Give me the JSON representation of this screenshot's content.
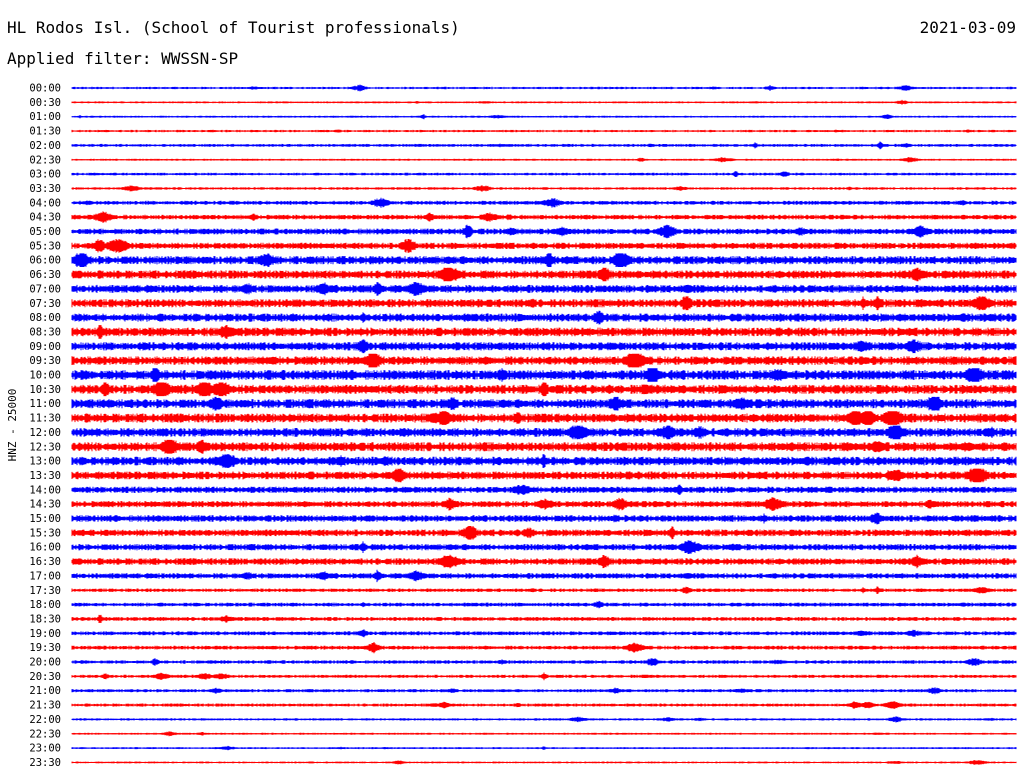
{
  "header": {
    "station": "HL Rodos Isl. (School of Tourist professionals)",
    "date": "2021-03-09",
    "filter": "Applied filter: WWSSN-SP"
  },
  "chart_data": {
    "type": "line",
    "title": "HL Rodos Isl. (School of Tourist professionals)",
    "ylabel": "HNZ - 25000",
    "xlabel": "",
    "colors": [
      "#0000ff",
      "#ff0000"
    ],
    "rows": [
      {
        "label": "00:00",
        "amp": 1.2
      },
      {
        "label": "00:30",
        "amp": 1.0
      },
      {
        "label": "01:00",
        "amp": 1.0
      },
      {
        "label": "01:30",
        "amp": 1.2
      },
      {
        "label": "02:00",
        "amp": 1.5
      },
      {
        "label": "02:30",
        "amp": 1.0
      },
      {
        "label": "03:00",
        "amp": 1.4
      },
      {
        "label": "03:30",
        "amp": 1.3
      },
      {
        "label": "04:00",
        "amp": 2.0
      },
      {
        "label": "04:30",
        "amp": 2.4
      },
      {
        "label": "05:00",
        "amp": 3.0
      },
      {
        "label": "05:30",
        "amp": 3.2
      },
      {
        "label": "06:00",
        "amp": 4.2
      },
      {
        "label": "06:30",
        "amp": 4.2
      },
      {
        "label": "07:00",
        "amp": 4.0
      },
      {
        "label": "07:30",
        "amp": 4.2
      },
      {
        "label": "08:00",
        "amp": 4.2
      },
      {
        "label": "08:30",
        "amp": 4.4
      },
      {
        "label": "09:00",
        "amp": 4.2
      },
      {
        "label": "09:30",
        "amp": 4.4
      },
      {
        "label": "10:00",
        "amp": 5.0
      },
      {
        "label": "10:30",
        "amp": 4.6
      },
      {
        "label": "11:00",
        "amp": 4.6
      },
      {
        "label": "11:30",
        "amp": 4.6
      },
      {
        "label": "12:00",
        "amp": 4.4
      },
      {
        "label": "12:30",
        "amp": 4.6
      },
      {
        "label": "13:00",
        "amp": 4.4
      },
      {
        "label": "13:30",
        "amp": 4.0
      },
      {
        "label": "14:00",
        "amp": 3.2
      },
      {
        "label": "14:30",
        "amp": 3.2
      },
      {
        "label": "15:00",
        "amp": 3.4
      },
      {
        "label": "15:30",
        "amp": 3.4
      },
      {
        "label": "16:00",
        "amp": 3.2
      },
      {
        "label": "16:30",
        "amp": 3.4
      },
      {
        "label": "17:00",
        "amp": 2.8
      },
      {
        "label": "17:30",
        "amp": 1.8
      },
      {
        "label": "18:00",
        "amp": 2.0
      },
      {
        "label": "18:30",
        "amp": 2.0
      },
      {
        "label": "19:00",
        "amp": 2.0
      },
      {
        "label": "19:30",
        "amp": 2.0
      },
      {
        "label": "20:00",
        "amp": 1.8
      },
      {
        "label": "20:30",
        "amp": 1.6
      },
      {
        "label": "21:00",
        "amp": 1.6
      },
      {
        "label": "21:30",
        "amp": 1.6
      },
      {
        "label": "22:00",
        "amp": 1.2
      },
      {
        "label": "22:30",
        "amp": 1.0
      },
      {
        "label": "23:00",
        "amp": 1.0
      },
      {
        "label": "23:30",
        "amp": 1.0
      }
    ]
  }
}
